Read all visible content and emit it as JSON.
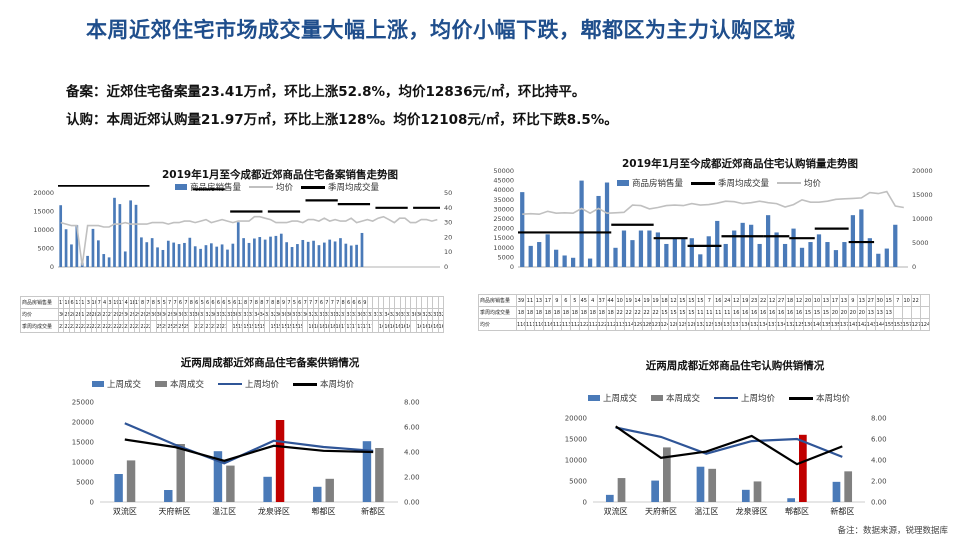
{
  "page": {
    "title": "本周近郊住宅市场成交量大幅上涨，均价小幅下跌，郫都区为主力认购区域",
    "summary_line1": "备案：近郊住宅备案量23.41万㎡，环比上涨52.8%，均价12836元/㎡，环比持平。",
    "summary_line2": "认购：本周近郊认购量21.97万㎡，环比上涨128%。均价12108元/㎡，环比下跌8.5%。",
    "footnote": "备注：数据来源，锐理数据库"
  },
  "colors": {
    "bar_blue": "#4a7ab8",
    "bar_gray": "#808080",
    "bar_red": "#c00000",
    "line_gray": "#c0c0c0",
    "line_black": "#000000",
    "line_blue": "#2f5597",
    "title_blue": "#1f4e8c"
  },
  "chart_data": [
    {
      "id": "c1",
      "type": "bar",
      "title": "2019年1月至今成都近郊商品住宅备案销售走势图",
      "legend": [
        "商品房销售量",
        "均价",
        "季周均成交量"
      ],
      "y_left": {
        "ticks": [
          "0",
          "5000",
          "10000",
          "15000",
          "20000"
        ],
        "min": 0,
        "max": 20000
      },
      "y_right": {
        "ticks": [
          "0",
          "10",
          "20",
          "30",
          "40",
          "50"
        ],
        "min": 0,
        "max": 50
      },
      "row_labels": [
        "商品房销售量",
        "均价",
        "季周均成交量"
      ],
      "sales": [
        16.7,
        10.2,
        6.1,
        11.3,
        1.2,
        3.0,
        10.3,
        7.2,
        3.5,
        2.6,
        18.7,
        17.0,
        4.2,
        18.0,
        16.8,
        8.0,
        6.7,
        7.8,
        5.3,
        4.6,
        7.1,
        6.6,
        6.2,
        6.5,
        7.9,
        5.6,
        4.9,
        5.9,
        6.4,
        5.5,
        6.1,
        4.7,
        6.3,
        12.1,
        7.8,
        6.5,
        7.7,
        8.1,
        7.4,
        8.2,
        8.4,
        9.0,
        6.7,
        5.4,
        6.2,
        7.3,
        6.8,
        7.1,
        5.9,
        6.6,
        7.4,
        6.9,
        7.8,
        6.3,
        5.8,
        6.0,
        9.2
      ],
      "avg_price": [
        30,
        29,
        28,
        28,
        1,
        28,
        28,
        28,
        27,
        27,
        29,
        29,
        30,
        29,
        29,
        29,
        29,
        30,
        30,
        30,
        29,
        30,
        30,
        31,
        31,
        30,
        31,
        32,
        30,
        31,
        32,
        31,
        30,
        31,
        31,
        31,
        34,
        34,
        33,
        32,
        30,
        30,
        30,
        31,
        31,
        30,
        32,
        32,
        31,
        33,
        31,
        32,
        31,
        31,
        33,
        30,
        31,
        32,
        31,
        33,
        34,
        32,
        30,
        33,
        33,
        30,
        30,
        32,
        32,
        31,
        32
      ],
      "quarter_avg": [
        {
          "start": 0,
          "end": 16,
          "value": 22
        },
        {
          "start": 18,
          "end": 23,
          "value": 25
        },
        {
          "start": 25,
          "end": 30,
          "value": 21
        },
        {
          "start": 32,
          "end": 37,
          "value": 15
        },
        {
          "start": 39,
          "end": 44,
          "value": 15
        },
        {
          "start": 46,
          "end": 51,
          "value": 18
        },
        {
          "start": 52,
          "end": 57,
          "value": 17
        },
        {
          "start": 59,
          "end": 64,
          "value": 16
        },
        {
          "start": 66,
          "end": 70,
          "value": 16
        }
      ]
    },
    {
      "id": "c2",
      "type": "bar",
      "title": "2019年1月至今成都近郊商品住宅认购销量走势图",
      "legend": [
        "商品房销售量",
        "季周均成交量",
        "均价"
      ],
      "y_left": {
        "ticks": [
          "0",
          "5000",
          "10000",
          "15000",
          "20000",
          "25000",
          "30000",
          "35000",
          "40000",
          "45000",
          "50000"
        ],
        "min": 0,
        "max": 50000
      },
      "y_right": {
        "ticks": [
          "0",
          "5000",
          "10000",
          "15000",
          "20000"
        ],
        "min": 0,
        "max": 20000
      },
      "row_labels": [
        "商品房销售量",
        "季周均成交量",
        "均价"
      ],
      "sales": [
        39,
        11,
        13,
        17,
        9,
        6,
        4.8,
        45,
        4.4,
        37,
        44,
        10,
        19,
        14,
        19,
        19,
        18,
        12,
        15,
        15,
        15,
        6.6,
        16,
        24,
        12,
        19,
        23,
        22,
        12,
        27,
        18,
        12,
        20,
        10,
        13,
        17,
        13,
        8.8,
        13,
        27,
        30,
        15,
        6.9,
        9.6,
        22
      ],
      "avg_price": [
        11000,
        11100,
        11000,
        11600,
        11200,
        11300,
        11200,
        12200,
        11200,
        12200,
        11200,
        11300,
        11400,
        12900,
        12800,
        12100,
        12400,
        12800,
        12900,
        12800,
        13200,
        12900,
        13000,
        13300,
        13700,
        13600,
        13200,
        13400,
        13700,
        13400,
        13200,
        12500,
        13000,
        14000,
        13500,
        13500,
        13700,
        14100,
        14200,
        14300,
        14400,
        15500,
        15300,
        15700,
        12700,
        12400
      ],
      "quarter_avg": [
        {
          "start": 0,
          "end": 10,
          "value": 18
        },
        {
          "start": 11,
          "end": 15,
          "value": 22
        },
        {
          "start": 16,
          "end": 19,
          "value": 15
        },
        {
          "start": 20,
          "end": 23,
          "value": 11
        },
        {
          "start": 24,
          "end": 28,
          "value": 16
        },
        {
          "start": 29,
          "end": 31,
          "value": 16
        },
        {
          "start": 32,
          "end": 34,
          "value": 15
        },
        {
          "start": 35,
          "end": 38,
          "value": 20
        },
        {
          "start": 39,
          "end": 41,
          "value": 13
        }
      ]
    },
    {
      "id": "c3",
      "type": "bar",
      "title": "近两周成都近郊商品住宅备案供销情况",
      "legend": [
        "上周成交",
        "本周成交",
        "上周均价",
        "本周均价"
      ],
      "categories": [
        "双流区",
        "天府新区",
        "温江区",
        "龙泉驿区",
        "郫都区",
        "新都区"
      ],
      "y_left": {
        "ticks": [
          "0",
          "5000",
          "10000",
          "15000",
          "20000",
          "25000"
        ],
        "min": 0,
        "max": 25000
      },
      "y_right": {
        "ticks": [
          "0.00",
          "2.00",
          "4.00",
          "6.00",
          "8.00"
        ],
        "min": 0,
        "max": 8
      },
      "series": [
        {
          "name": "上周成交",
          "values": [
            7000,
            3000,
            12700,
            6300,
            3800,
            15200
          ]
        },
        {
          "name": "本周成交",
          "values": [
            10400,
            14500,
            9100,
            20500,
            5800,
            13500
          ]
        },
        {
          "name": "上周均价",
          "values": [
            6.3,
            4.6,
            3.1,
            4.9,
            4.4,
            4.1
          ]
        },
        {
          "name": "本周均价",
          "values": [
            5.0,
            4.4,
            3.3,
            4.5,
            4.1,
            4.0
          ]
        }
      ],
      "highlight_index": 3
    },
    {
      "id": "c4",
      "type": "bar",
      "title": "近两周成都近郊商品住宅认购供销情况",
      "legend": [
        "上周成交",
        "本周成交",
        "上周均价",
        "本周均价"
      ],
      "categories": [
        "双流区",
        "天府新区",
        "温江区",
        "龙泉驿区",
        "郫都区",
        "新都区"
      ],
      "y_left": {
        "ticks": [
          "0",
          "5000",
          "10000",
          "15000",
          "20000"
        ],
        "min": 0,
        "max": 20000
      },
      "y_right": {
        "ticks": [
          "0.00",
          "2.00",
          "4.00",
          "6.00",
          "8.00"
        ],
        "min": 0,
        "max": 8
      },
      "series": [
        {
          "name": "上周成交",
          "values": [
            1700,
            5100,
            8400,
            2900,
            900,
            4800
          ]
        },
        {
          "name": "本周成交",
          "values": [
            5700,
            13000,
            7900,
            4900,
            16000,
            7300
          ]
        },
        {
          "name": "上周均价",
          "values": [
            7.1,
            6.2,
            4.6,
            5.8,
            6.0,
            4.3
          ]
        },
        {
          "name": "本周均价",
          "values": [
            7.2,
            4.2,
            4.8,
            6.3,
            3.6,
            5.3
          ]
        }
      ],
      "highlight_index": 4
    }
  ]
}
